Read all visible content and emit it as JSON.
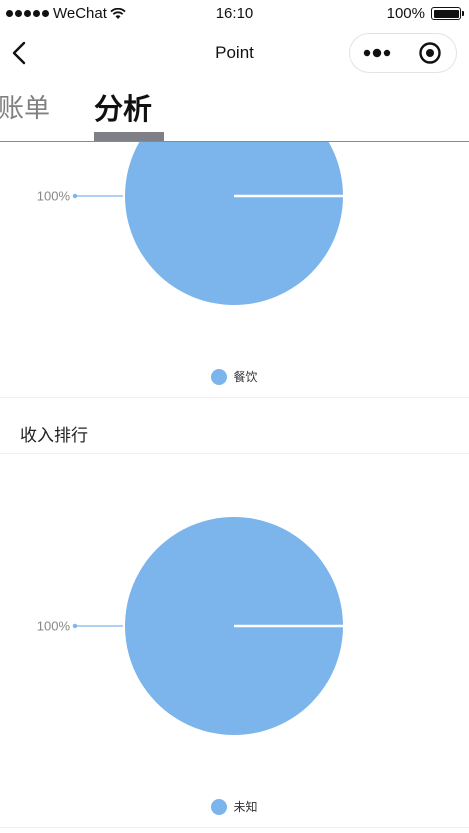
{
  "status_bar": {
    "carrier": "WeChat",
    "time": "16:10",
    "battery": "100%"
  },
  "nav": {
    "title": "Point",
    "back_icon": "chevron-left-icon",
    "more_icon": "more-dots-icon",
    "close_icon": "target-circle-icon"
  },
  "tabs": [
    {
      "label": "账单",
      "active": false
    },
    {
      "label": "分析",
      "active": true
    }
  ],
  "section_income": {
    "title": "收入排行"
  },
  "colors": {
    "pie": "#7cb4ec",
    "active_tab_indicator": "#7f8087",
    "inactive_tab": "#808080"
  },
  "chart_data": [
    {
      "type": "pie",
      "labels": [
        "餐饮"
      ],
      "values": [
        100
      ],
      "data_labels": [
        "100%"
      ],
      "legend": [
        "餐饮"
      ],
      "legend_position": "bottom"
    },
    {
      "type": "pie",
      "labels": [
        "未知"
      ],
      "values": [
        100
      ],
      "data_labels": [
        "100%"
      ],
      "legend": [
        "未知"
      ],
      "legend_position": "bottom"
    }
  ]
}
